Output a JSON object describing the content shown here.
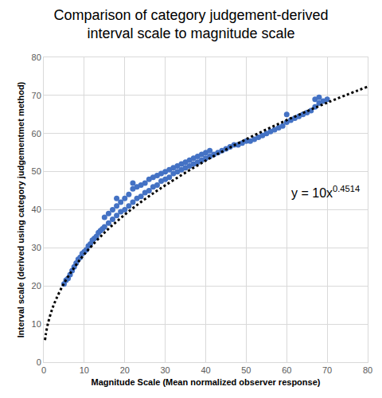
{
  "chart_data": {
    "type": "scatter",
    "title": [
      "Comparison of category judgement-derived",
      "interval scale to magnitude scale"
    ],
    "x_label": "Magnitude Scale (Mean normalized observer response)",
    "y_label": "Interval scale (derived using category judgementmet method)",
    "xlim": [
      0,
      80
    ],
    "xticks": [
      0,
      10,
      20,
      30,
      40,
      50,
      60,
      70,
      80
    ],
    "ylim": [
      0,
      80
    ],
    "yticks": [
      0,
      10,
      20,
      30,
      40,
      50,
      60,
      70,
      80
    ],
    "grid": true,
    "series": [
      {
        "type": "scatter",
        "marker": "circle",
        "color": "#4472c4",
        "x": [
          5,
          5.5,
          6,
          6.5,
          7,
          7.5,
          8,
          8.5,
          9,
          9.5,
          10,
          10.5,
          11,
          11.5,
          12,
          12.5,
          13,
          13.5,
          14,
          14.5,
          15,
          15,
          16,
          16,
          17,
          17,
          18,
          18,
          18,
          19,
          19,
          20,
          20,
          21,
          21,
          22,
          22,
          22,
          23,
          23,
          24,
          24,
          25,
          25,
          26,
          26,
          27,
          27,
          28,
          28,
          29,
          29,
          30,
          30,
          31,
          31,
          32,
          32,
          33,
          33,
          34,
          34,
          35,
          35,
          36,
          36,
          37,
          37,
          38,
          38,
          39,
          39,
          40,
          40,
          41,
          41,
          42,
          43,
          44,
          45,
          46,
          47,
          48,
          49,
          50,
          51,
          52,
          53,
          54,
          55,
          56,
          57,
          58,
          59,
          60,
          60,
          61,
          62,
          63,
          64,
          65,
          66,
          67,
          67,
          68,
          68,
          69,
          70
        ],
        "values": [
          20.5,
          21.5,
          22,
          23,
          24,
          25,
          26,
          27,
          27.5,
          28.5,
          29,
          29.5,
          30.5,
          31,
          32,
          32.5,
          33,
          34,
          34.5,
          35,
          35.5,
          38,
          36.5,
          39,
          37.5,
          40,
          38.5,
          41,
          43,
          39.5,
          42,
          40,
          43,
          41,
          44,
          42,
          45.5,
          47,
          43,
          46,
          43.5,
          46.5,
          44.5,
          47,
          45,
          48,
          46,
          48.5,
          46.5,
          49,
          47.5,
          49.5,
          48,
          50,
          48.5,
          50.5,
          49.5,
          51,
          50,
          51.5,
          50.5,
          52,
          51,
          52.5,
          51.5,
          53,
          52,
          53.5,
          52.5,
          54,
          53,
          54.5,
          53.5,
          55,
          54,
          55.5,
          54.5,
          55,
          55.5,
          56,
          56.5,
          57,
          57,
          57.5,
          58,
          58,
          58.5,
          59,
          59.5,
          60,
          60.5,
          61,
          61.5,
          62,
          63,
          65,
          63.5,
          64,
          64.5,
          65,
          65.5,
          66,
          67,
          69,
          68,
          69.5,
          68.5,
          69
        ]
      },
      {
        "type": "line",
        "line_style": "dotted",
        "color": "#000000",
        "x": [
          0.3,
          0.5,
          1,
          2,
          3,
          5,
          7.5,
          10,
          15,
          20,
          25,
          30,
          40,
          50,
          60,
          70,
          80
        ],
        "values": [
          5.8,
          7.3,
          10,
          13.7,
          16.4,
          20.7,
          24.8,
          28.3,
          34,
          38.7,
          42.8,
          46.4,
          52.9,
          58.5,
          63.5,
          68.1,
          72.3
        ]
      }
    ],
    "annotations": [
      {
        "text": "y = 10x",
        "exponent": "0.4514"
      }
    ]
  }
}
